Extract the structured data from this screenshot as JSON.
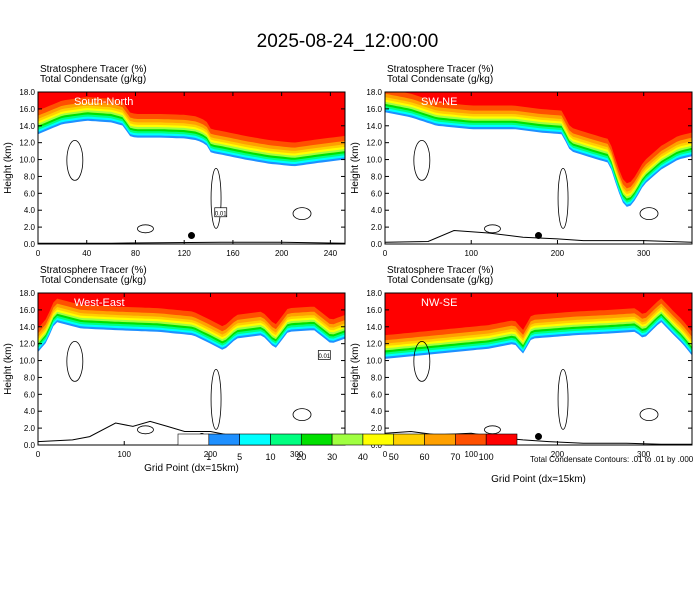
{
  "title": "2025-08-24_12:00:00",
  "footnote": "Total Condensate Contours: .01 to .01 by .000",
  "colors": {
    "background": "#ffffff",
    "terrain": "#000000",
    "contour": "#000000",
    "marker": "#000000"
  },
  "colorbar": {
    "levels": [
      "1",
      "5",
      "10",
      "20",
      "30",
      "40",
      "50",
      "60",
      "70",
      "100"
    ],
    "colors": [
      "#ffffff",
      "#1e90ff",
      "#00ffff",
      "#00ff80",
      "#00e000",
      "#a0ff40",
      "#ffff00",
      "#ffd000",
      "#ffa000",
      "#ff5000",
      "#ff0000"
    ]
  },
  "chart_data": [
    {
      "type": "heatmap",
      "panel_label": "South-North",
      "subtitle_line1": "Stratosphere Tracer   (%)",
      "subtitle_line2": "Total Condensate   (g/kg)",
      "xlabel": "",
      "ylabel": "Height (km)",
      "xlim": [
        0,
        252
      ],
      "ylim": [
        0,
        18
      ],
      "xticks": [
        "0",
        "40",
        "80",
        "120",
        "160",
        "200",
        "240"
      ],
      "xtick_values": [
        0,
        40,
        80,
        120,
        160,
        200,
        240
      ],
      "yticks": [
        "0.0",
        "2.0",
        "4.0",
        "6.0",
        "8.0",
        "10.0",
        "12.0",
        "14.0",
        "16.0",
        "18.0"
      ],
      "ytick_values": [
        0,
        2,
        4,
        6,
        8,
        10,
        12,
        14,
        16,
        18
      ],
      "tracer_base_km": [
        [
          0,
          13.0
        ],
        [
          20,
          14.2
        ],
        [
          40,
          14.6
        ],
        [
          60,
          14.4
        ],
        [
          70,
          14.0
        ],
        [
          75,
          12.8
        ],
        [
          80,
          12.6
        ],
        [
          100,
          12.6
        ],
        [
          120,
          12.5
        ],
        [
          130,
          12.3
        ],
        [
          138,
          11.8
        ],
        [
          142,
          10.8
        ],
        [
          150,
          10.6
        ],
        [
          170,
          10.0
        ],
        [
          190,
          9.5
        ],
        [
          210,
          9.2
        ],
        [
          230,
          9.6
        ],
        [
          252,
          10.0
        ]
      ],
      "terrain_km": [
        [
          0,
          0.1
        ],
        [
          60,
          0.1
        ],
        [
          100,
          0.15
        ],
        [
          150,
          0.2
        ],
        [
          200,
          0.2
        ],
        [
          252,
          0.1
        ]
      ],
      "contour_label": "0.01",
      "contour_label_x": 150,
      "contour_label_y": 3.7,
      "marker_x": 126,
      "marker_y": 1.0
    },
    {
      "type": "heatmap",
      "panel_label": "SW-NE",
      "subtitle_line1": "Stratosphere Tracer   (%)",
      "subtitle_line2": "Total Condensate   (g/kg)",
      "xlabel": "",
      "ylabel": "Height (km)",
      "xlim": [
        0,
        356
      ],
      "ylim": [
        0,
        18
      ],
      "xticks": [
        "0",
        "100",
        "200",
        "300"
      ],
      "xtick_values": [
        0,
        100,
        200,
        300
      ],
      "yticks": [
        "0.0",
        "2.0",
        "4.0",
        "6.0",
        "8.0",
        "10.0",
        "12.0",
        "14.0",
        "16.0",
        "18.0"
      ],
      "ytick_values": [
        0,
        2,
        4,
        6,
        8,
        10,
        12,
        14,
        16,
        18
      ],
      "tracer_base_km": [
        [
          0,
          15.6
        ],
        [
          30,
          15.0
        ],
        [
          60,
          14.0
        ],
        [
          100,
          13.6
        ],
        [
          150,
          13.6
        ],
        [
          180,
          13.2
        ],
        [
          205,
          13.0
        ],
        [
          215,
          11.0
        ],
        [
          240,
          10.2
        ],
        [
          260,
          9.6
        ],
        [
          268,
          7.0
        ],
        [
          275,
          5.0
        ],
        [
          282,
          4.2
        ],
        [
          290,
          5.2
        ],
        [
          300,
          7.0
        ],
        [
          320,
          8.8
        ],
        [
          340,
          10.0
        ],
        [
          356,
          10.4
        ]
      ],
      "terrain_km": [
        [
          0,
          0.2
        ],
        [
          50,
          0.3
        ],
        [
          80,
          1.6
        ],
        [
          120,
          1.3
        ],
        [
          160,
          0.8
        ],
        [
          200,
          0.6
        ],
        [
          230,
          0.4
        ],
        [
          260,
          0.4
        ],
        [
          300,
          0.4
        ],
        [
          356,
          0.2
        ]
      ],
      "contour_label": "",
      "contour_label_x": 0,
      "contour_label_y": 0,
      "marker_x": 178,
      "marker_y": 1.0
    },
    {
      "type": "heatmap",
      "panel_label": "West-East",
      "subtitle_line1": "Stratosphere Tracer   (%)",
      "subtitle_line2": "Total Condensate   (g/kg)",
      "xlabel": "Grid Point  (dx=15km)",
      "ylabel": "Height (km)",
      "xlim": [
        0,
        356
      ],
      "ylim": [
        0,
        18
      ],
      "xticks": [
        "0",
        "100",
        "200",
        "300"
      ],
      "xtick_values": [
        0,
        100,
        200,
        300
      ],
      "yticks": [
        "0.0",
        "2.0",
        "4.0",
        "6.0",
        "8.0",
        "10.0",
        "12.0",
        "14.0",
        "16.0",
        "18.0"
      ],
      "ytick_values": [
        0,
        2,
        4,
        6,
        8,
        10,
        12,
        14,
        16,
        18
      ],
      "tracer_base_km": [
        [
          0,
          11.0
        ],
        [
          10,
          12.2
        ],
        [
          20,
          14.6
        ],
        [
          50,
          13.8
        ],
        [
          90,
          13.6
        ],
        [
          140,
          13.4
        ],
        [
          180,
          13.0
        ],
        [
          200,
          12.0
        ],
        [
          215,
          11.2
        ],
        [
          230,
          12.6
        ],
        [
          260,
          13.0
        ],
        [
          275,
          11.4
        ],
        [
          290,
          13.4
        ],
        [
          320,
          13.6
        ],
        [
          340,
          12.0
        ],
        [
          356,
          12.6
        ]
      ],
      "terrain_km": [
        [
          0,
          0.4
        ],
        [
          40,
          0.6
        ],
        [
          60,
          1.0
        ],
        [
          90,
          2.6
        ],
        [
          110,
          2.2
        ],
        [
          130,
          2.8
        ],
        [
          150,
          2.2
        ],
        [
          170,
          1.6
        ],
        [
          200,
          1.6
        ],
        [
          230,
          1.0
        ],
        [
          260,
          0.6
        ],
        [
          290,
          0.3
        ],
        [
          320,
          0.2
        ],
        [
          356,
          0.1
        ]
      ],
      "contour_label": "0.01",
      "contour_label_x": 332,
      "contour_label_y": 10.6,
      "marker_x": 190,
      "marker_y": 1.0
    },
    {
      "type": "heatmap",
      "panel_label": "NW-SE",
      "subtitle_line1": "Stratosphere Tracer   (%)",
      "subtitle_line2": "Total Condensate   (g/kg)",
      "xlabel": "Grid Point  (dx=15km)",
      "ylabel": "Height (km)",
      "xlim": [
        0,
        356
      ],
      "ylim": [
        0,
        18
      ],
      "xticks": [
        "0",
        "100",
        "200",
        "300"
      ],
      "xtick_values": [
        0,
        100,
        200,
        300
      ],
      "yticks": [
        "0.0",
        "2.0",
        "4.0",
        "6.0",
        "8.0",
        "10.0",
        "12.0",
        "14.0",
        "16.0",
        "18.0"
      ],
      "ytick_values": [
        0,
        2,
        4,
        6,
        8,
        10,
        12,
        14,
        16,
        18
      ],
      "tracer_base_km": [
        [
          0,
          10.2
        ],
        [
          40,
          10.6
        ],
        [
          80,
          11.0
        ],
        [
          120,
          11.4
        ],
        [
          150,
          12.0
        ],
        [
          160,
          10.8
        ],
        [
          170,
          12.6
        ],
        [
          220,
          13.0
        ],
        [
          260,
          13.2
        ],
        [
          290,
          13.4
        ],
        [
          300,
          12.6
        ],
        [
          320,
          14.6
        ],
        [
          335,
          13.0
        ],
        [
          345,
          12.0
        ],
        [
          356,
          10.6
        ]
      ],
      "terrain_km": [
        [
          0,
          1.4
        ],
        [
          30,
          1.6
        ],
        [
          60,
          1.2
        ],
        [
          100,
          1.4
        ],
        [
          130,
          0.9
        ],
        [
          160,
          0.6
        ],
        [
          190,
          0.4
        ],
        [
          230,
          0.2
        ],
        [
          280,
          0.2
        ],
        [
          320,
          0.1
        ],
        [
          356,
          0.1
        ]
      ],
      "contour_label": "",
      "contour_label_x": 0,
      "contour_label_y": 0,
      "marker_x": 178,
      "marker_y": 1.0
    }
  ]
}
